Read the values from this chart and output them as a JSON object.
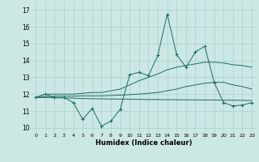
{
  "title": "",
  "xlabel": "Humidex (Indice chaleur)",
  "xlim": [
    -0.5,
    23.5
  ],
  "ylim": [
    9.7,
    17.5
  ],
  "yticks": [
    10,
    11,
    12,
    13,
    14,
    15,
    16,
    17
  ],
  "xticks": [
    0,
    1,
    2,
    3,
    4,
    5,
    6,
    7,
    8,
    9,
    10,
    11,
    12,
    13,
    14,
    15,
    16,
    17,
    18,
    19,
    20,
    21,
    22,
    23
  ],
  "bg_color": "#cce8e4",
  "line_color": "#1e6b60",
  "grid_color": "#aacfca",
  "series": {
    "wavy": [
      11.8,
      12.0,
      11.8,
      11.8,
      11.5,
      10.5,
      11.15,
      10.1,
      10.4,
      11.1,
      13.15,
      13.3,
      13.1,
      14.3,
      16.75,
      14.35,
      13.6,
      14.5,
      14.85,
      12.7,
      11.5,
      11.3,
      11.35,
      11.5
    ],
    "upper_trend": [
      11.8,
      12.0,
      12.0,
      12.0,
      12.0,
      12.05,
      12.1,
      12.1,
      12.2,
      12.3,
      12.55,
      12.8,
      13.0,
      13.2,
      13.45,
      13.6,
      13.7,
      13.8,
      13.9,
      13.9,
      13.85,
      13.75,
      13.7,
      13.6
    ],
    "mid_trend": [
      11.8,
      11.85,
      11.88,
      11.88,
      11.88,
      11.9,
      11.9,
      11.9,
      11.92,
      11.94,
      11.97,
      12.0,
      12.05,
      12.1,
      12.2,
      12.3,
      12.45,
      12.55,
      12.65,
      12.7,
      12.7,
      12.55,
      12.45,
      12.3
    ],
    "lower_trend": [
      11.8,
      11.8,
      11.78,
      11.78,
      11.76,
      11.74,
      11.73,
      11.72,
      11.71,
      11.71,
      11.7,
      11.69,
      11.68,
      11.68,
      11.67,
      11.67,
      11.66,
      11.66,
      11.65,
      11.65,
      11.64,
      11.64,
      11.63,
      11.63
    ]
  }
}
